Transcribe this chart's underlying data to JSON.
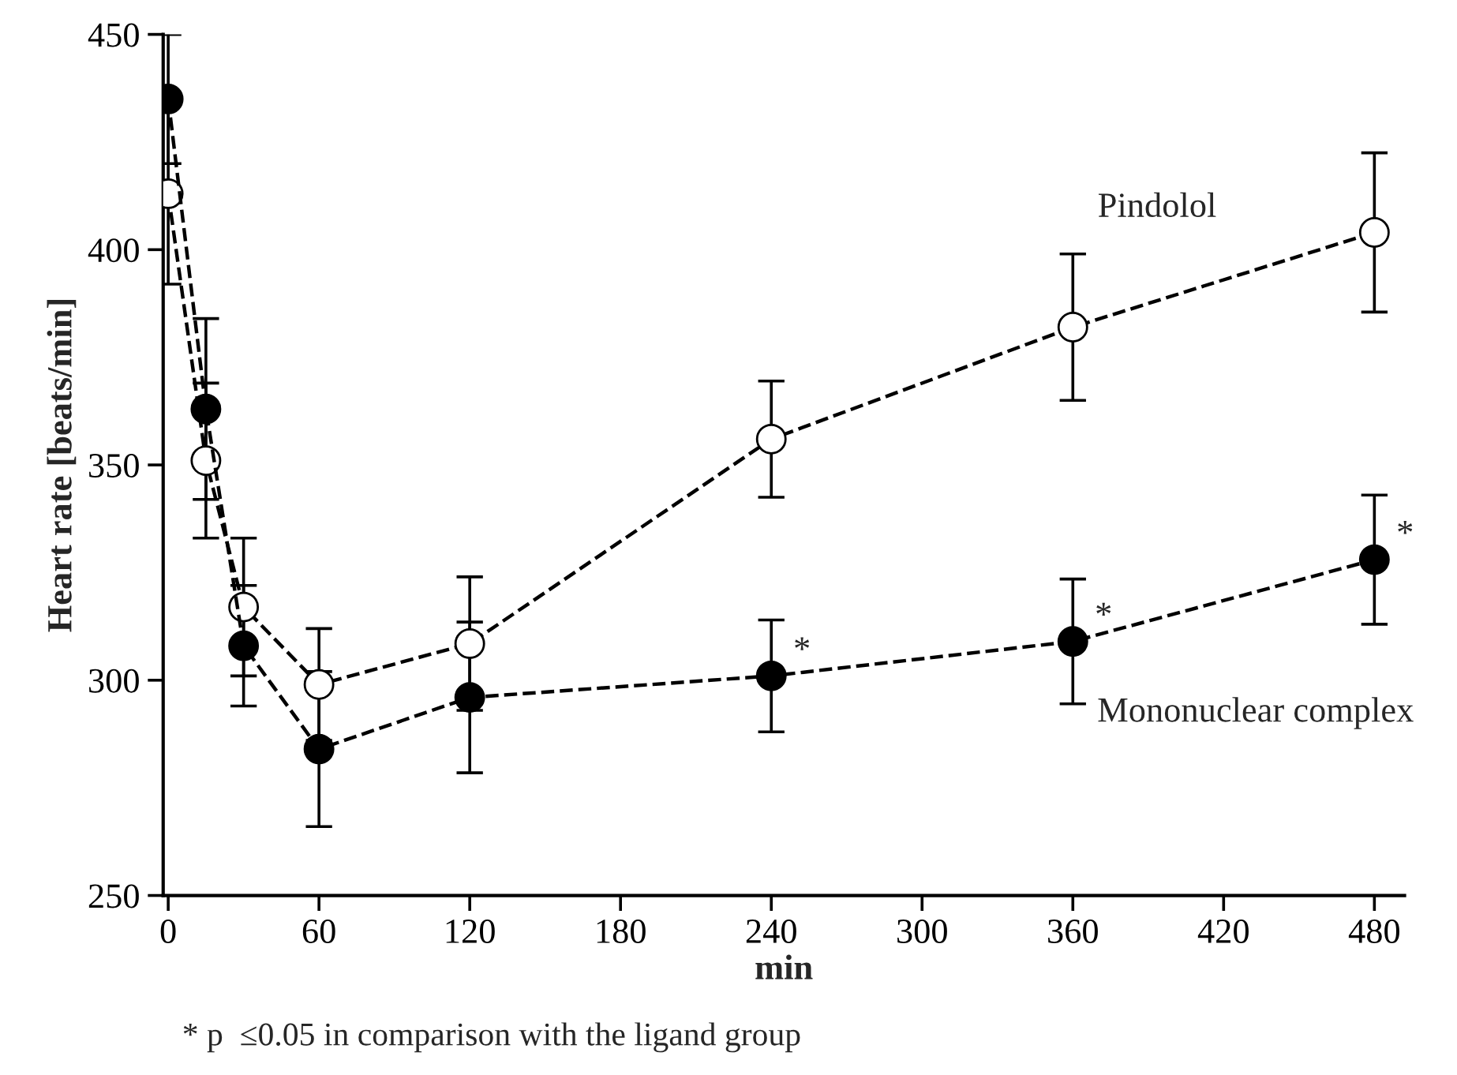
{
  "chart_data": {
    "type": "line",
    "xlabel": "min",
    "ylabel": "Heart rate [beats/min]",
    "x": [
      0,
      15,
      30,
      60,
      120,
      240,
      360,
      480
    ],
    "series": [
      {
        "name": "Pindolol",
        "color": "#000000",
        "values": [
          413,
          351,
          317,
          299,
          308.5,
          356,
          382,
          404
        ],
        "errors": [
          21,
          18,
          16,
          13,
          15.5,
          13.5,
          17,
          18.5
        ]
      },
      {
        "name": "Mononuclear complex",
        "color": "#000000",
        "values": [
          435,
          363,
          308,
          284,
          296,
          301,
          309,
          328
        ],
        "errors": [
          15,
          21,
          14,
          18,
          17.5,
          13,
          14.5,
          15
        ]
      }
    ],
    "xlim": [
      -2,
      492
    ],
    "ylim": [
      250,
      450
    ],
    "xticks": [
      0,
      60,
      120,
      180,
      240,
      300,
      360,
      420,
      480
    ],
    "yticks": [
      250,
      300,
      350,
      400,
      450
    ],
    "grid": false,
    "legend": false,
    "marker": "circle",
    "line_style": "dashed",
    "annotations": [
      {
        "text": "*",
        "x": 240,
        "y": 301
      },
      {
        "text": "*",
        "x": 360,
        "y": 309
      },
      {
        "text": "*",
        "x": 480,
        "y": 328
      },
      "* p  ≤0.05 in comparison with the ligand group"
    ]
  }
}
